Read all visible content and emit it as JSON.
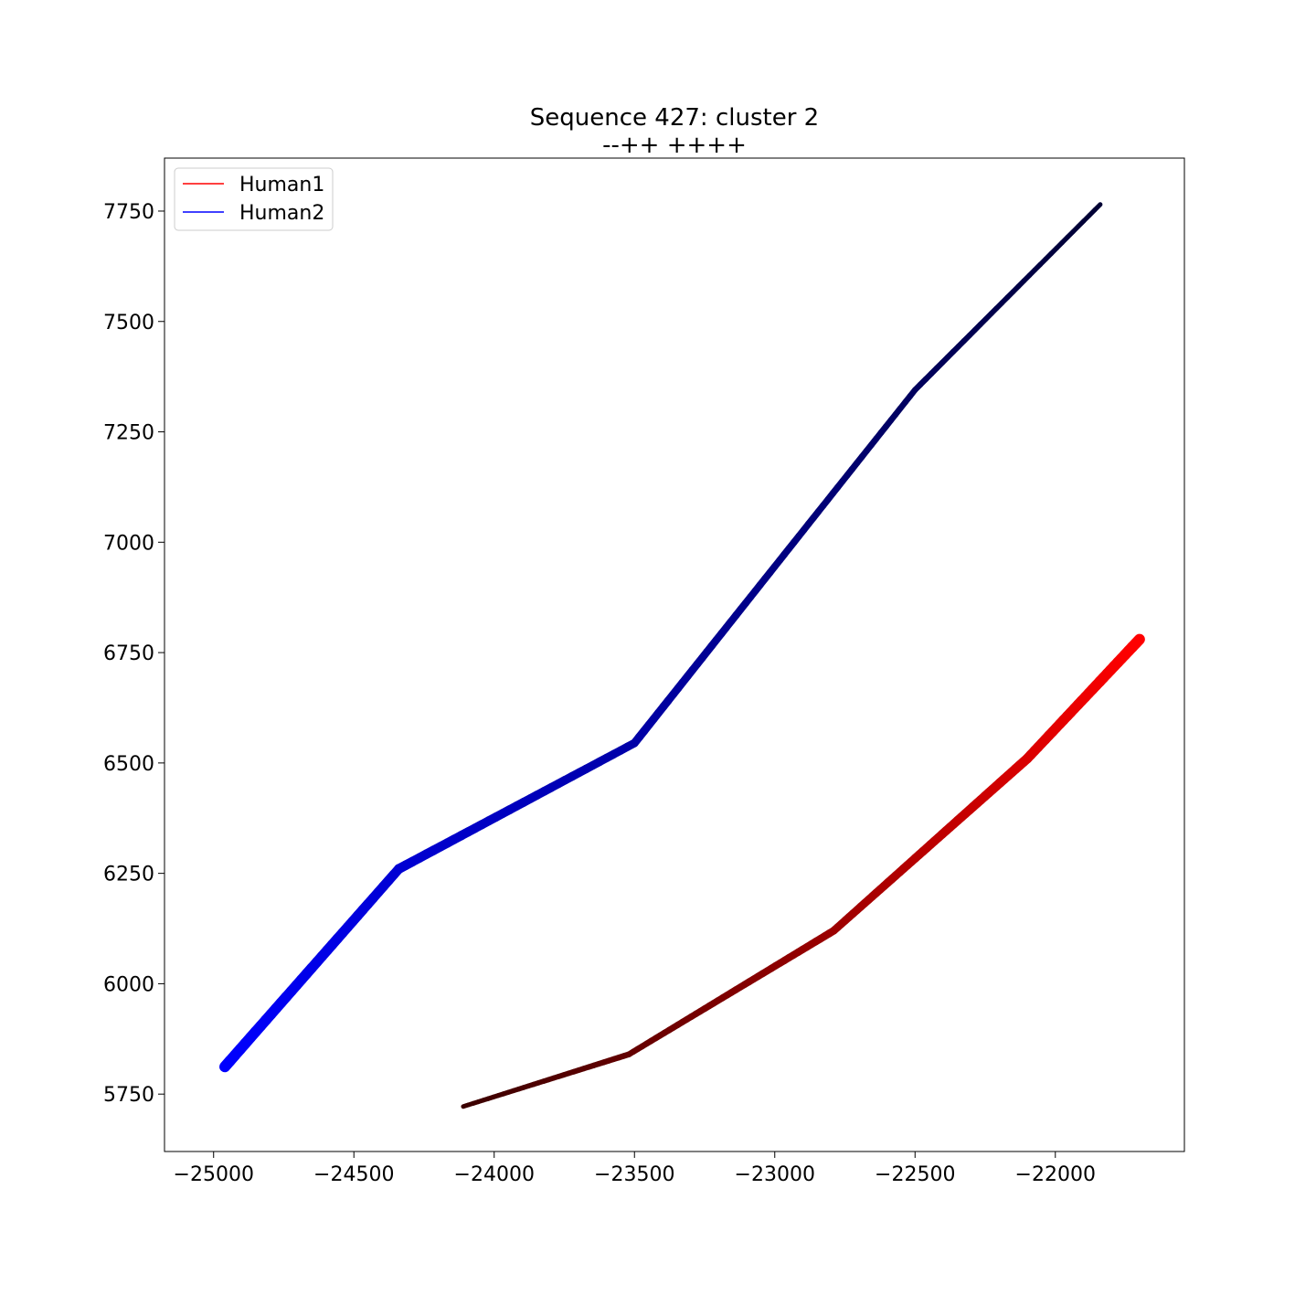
{
  "chart_data": {
    "type": "line",
    "title": "Sequence 427: cluster 2",
    "subtitle": "--++ ++++",
    "xlabel": "",
    "ylabel": "",
    "xlim": [
      -25175,
      -21540
    ],
    "ylim": [
      5620,
      7870
    ],
    "xticks": [
      -25000,
      -24500,
      -24000,
      -23500,
      -23000,
      -22500,
      -22000
    ],
    "xtick_labels": [
      "−25000",
      "−24500",
      "−24000",
      "−23500",
      "−23000",
      "−22500",
      "−22000"
    ],
    "yticks": [
      5750,
      6000,
      6250,
      6500,
      6750,
      7000,
      7250,
      7500,
      7750
    ],
    "ytick_labels": [
      "5750",
      "6000",
      "6250",
      "6500",
      "6750",
      "7000",
      "7250",
      "7500",
      "7750"
    ],
    "grid": false,
    "legend_position": "upper-left",
    "series": [
      {
        "name": "Human1",
        "legend_color": "#ff0000",
        "color_start": "#3a0000",
        "color_end": "#ff0000",
        "x": [
          -24110,
          -23520,
          -22790,
          -22100,
          -21700
        ],
        "y": [
          5722,
          5840,
          6120,
          6510,
          6780
        ]
      },
      {
        "name": "Human2",
        "legend_color": "#0000ff",
        "color_start": "#0000ff",
        "color_end": "#000033",
        "x": [
          -24960,
          -24340,
          -23500,
          -22500,
          -21840
        ],
        "y": [
          5812,
          6260,
          6545,
          7345,
          7765
        ]
      }
    ]
  }
}
